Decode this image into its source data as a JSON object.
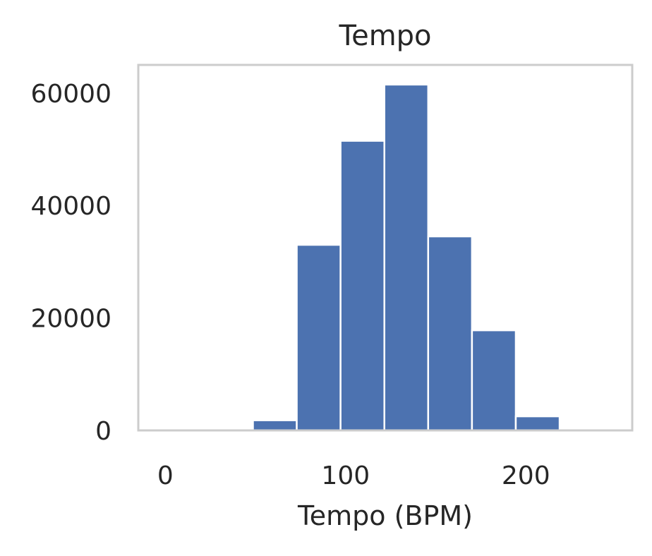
{
  "chart_data": {
    "type": "bar",
    "title": "Tempo",
    "xlabel": "Tempo (BPM)",
    "ylabel": "",
    "bin_edges": [
      0,
      24.3,
      48.6,
      72.9,
      97.2,
      121.5,
      145.8,
      170.1,
      194.4,
      218.7,
      243.0
    ],
    "values": [
      0,
      0,
      1800,
      33000,
      51500,
      61500,
      34500,
      17800,
      2500,
      0
    ],
    "xlim": [
      -15,
      259
    ],
    "ylim": [
      0,
      65000
    ],
    "xticks": [
      0,
      100,
      200
    ],
    "xtick_labels": [
      "0",
      "100",
      "200"
    ],
    "yticks": [
      0,
      20000,
      40000,
      60000
    ],
    "ytick_labels": [
      "0",
      "20000",
      "40000",
      "60000"
    ],
    "grid": false,
    "legend": "none",
    "bar_color": "#4c72b0",
    "frame_color": "#cccccc"
  }
}
